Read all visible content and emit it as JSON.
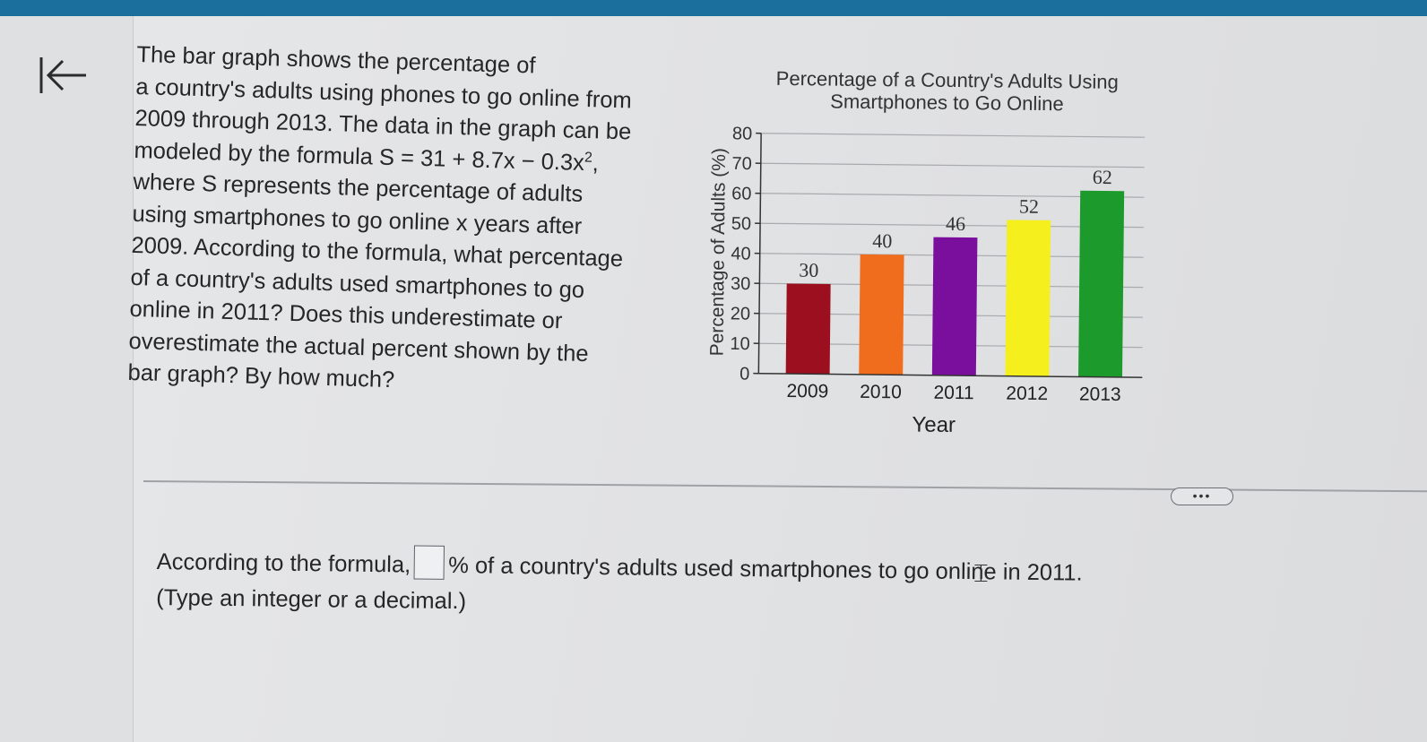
{
  "question": {
    "line1": "The bar graph shows the percentage of",
    "line2": "a country's adults using phones to go online from",
    "line3": "2009 through 2013. The data in the graph can be",
    "line4_pre": "modeled by the formula S = 31 + 8.7x − 0.3x",
    "line4_sup": "2",
    "line4_post": ",",
    "line5": "where S represents the percentage of adults",
    "line6": "using smartphones to go online x years after",
    "line7": "2009. According to the formula, what percentage",
    "line8": "of a country's adults used smartphones to go",
    "line9": "online in 2011? Does this underestimate or",
    "line10": "overestimate the actual percent shown by the",
    "line11": "bar graph? By how much?"
  },
  "chart_data": {
    "type": "bar",
    "title_line1": "Percentage of a Country's Adults Using",
    "title_line2": "Smartphones to Go Online",
    "xlabel": "Year",
    "ylabel": "Percentage of Adults (%)",
    "categories": [
      "2009",
      "2010",
      "2011",
      "2012",
      "2013"
    ],
    "values": [
      30,
      40,
      46,
      52,
      62
    ],
    "colors": [
      "#9b0f1e",
      "#ef6d1c",
      "#7a0f9e",
      "#f6ef1e",
      "#1c9a2c"
    ],
    "ylim": [
      0,
      80
    ],
    "yticks": [
      0,
      10,
      20,
      30,
      40,
      50,
      60,
      70,
      80
    ],
    "grid": true
  },
  "controls": {
    "collapse_icon": "collapse-left-icon",
    "more_label": "•••"
  },
  "answer": {
    "pre": "According to the formula,",
    "post": "% of a country's adults used smartphones to go online in 2011.",
    "hint": "(Type an integer or a decimal.)"
  }
}
